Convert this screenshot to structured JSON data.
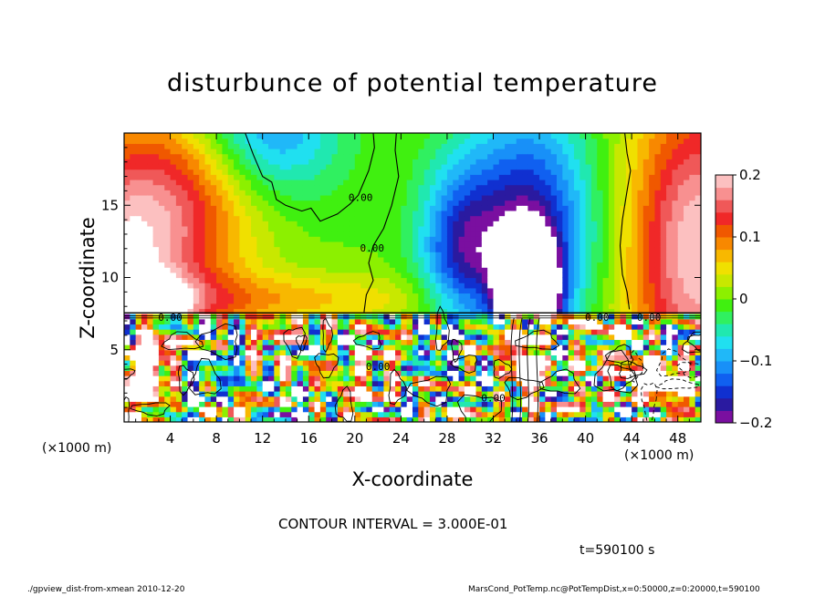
{
  "chart_data": {
    "type": "heatmap",
    "title": "disturbunce of potential temperature",
    "xlabel": "X-coordinate",
    "ylabel": "Z-coordinate",
    "x_unit_label": "(×1000 m)",
    "xlim": [
      0,
      50
    ],
    "ylim": [
      0,
      20
    ],
    "x_ticks": [
      4,
      8,
      12,
      16,
      20,
      24,
      28,
      32,
      36,
      40,
      44,
      48
    ],
    "y_ticks": [
      5,
      10,
      15
    ],
    "colorbar": {
      "range": [
        -0.2,
        0.2
      ],
      "ticks": [
        {
          "value": 0.2,
          "label": "0.2"
        },
        {
          "value": 0.1,
          "label": "0.1"
        },
        {
          "value": 0,
          "label": "0"
        },
        {
          "value": -0.1,
          "label": "−0.1"
        },
        {
          "value": -0.2,
          "label": "−0.2"
        }
      ],
      "colors": [
        "#7a0fa0",
        "#2a1aa0",
        "#1030d0",
        "#1060f0",
        "#1890f8",
        "#20b8f8",
        "#20e0f0",
        "#20e8b0",
        "#30f060",
        "#40f010",
        "#8cf000",
        "#c8e800",
        "#f0e000",
        "#f8b800",
        "#f88800",
        "#f05800",
        "#f02828",
        "#f05858",
        "#f89090",
        "#fcc0c0"
      ],
      "over_color": "#ffffff"
    },
    "contour_interval": "CONTOUR INTERVAL = 3.000E-01",
    "contour_labels": [
      {
        "x": 20.5,
        "z": 15.5,
        "text": "0.00"
      },
      {
        "x": 21.5,
        "z": 12.0,
        "text": "0.00"
      },
      {
        "x": 4.0,
        "z": 7.2,
        "text": "0.00"
      },
      {
        "x": 41.0,
        "z": 7.2,
        "text": "0.00"
      },
      {
        "x": 45.5,
        "z": 7.2,
        "text": "0.00"
      },
      {
        "x": 22.0,
        "z": 3.8,
        "text": "0.00"
      },
      {
        "x": 32.0,
        "z": 1.6,
        "text": "0.00"
      }
    ],
    "upper_field": {
      "description_free": true,
      "blobs": [
        {
          "x": 12,
          "z": 20,
          "sx": 4.5,
          "sz": 3.5,
          "v": -0.13
        },
        {
          "x": 35,
          "z": 13,
          "sx": 4.0,
          "sz": 6.0,
          "v": -0.18
        },
        {
          "x": 29,
          "z": 12,
          "sx": 2.5,
          "sz": 4.0,
          "v": -0.12
        },
        {
          "x": 35,
          "z": 8.8,
          "sx": 1.6,
          "sz": 2.5,
          "v": -0.45
        },
        {
          "x": 0,
          "z": 11,
          "sx": 5.5,
          "sz": 6.0,
          "v": 0.2
        },
        {
          "x": 50,
          "z": 12,
          "sx": 4.5,
          "sz": 8.0,
          "v": 0.2
        },
        {
          "x": 7,
          "z": 17,
          "sx": 5.0,
          "sz": 4.0,
          "v": 0.08
        },
        {
          "x": 10,
          "z": 8.5,
          "sx": 14.0,
          "sz": 1.3,
          "v": 0.07
        },
        {
          "x": 1.5,
          "z": 8.3,
          "sx": 2.0,
          "sz": 1.0,
          "v": 0.3
        }
      ]
    }
  },
  "labels": {
    "x_unit_left": "(×1000 m)",
    "x_unit_right": "(×1000 m)",
    "time": "t=590100 s",
    "footer_left": "./gpview_dist-from-xmean  2010-12-20",
    "footer_right": "MarsCond_PotTemp.nc@PotTempDist,x=0:50000,z=0:20000,t=590100"
  }
}
